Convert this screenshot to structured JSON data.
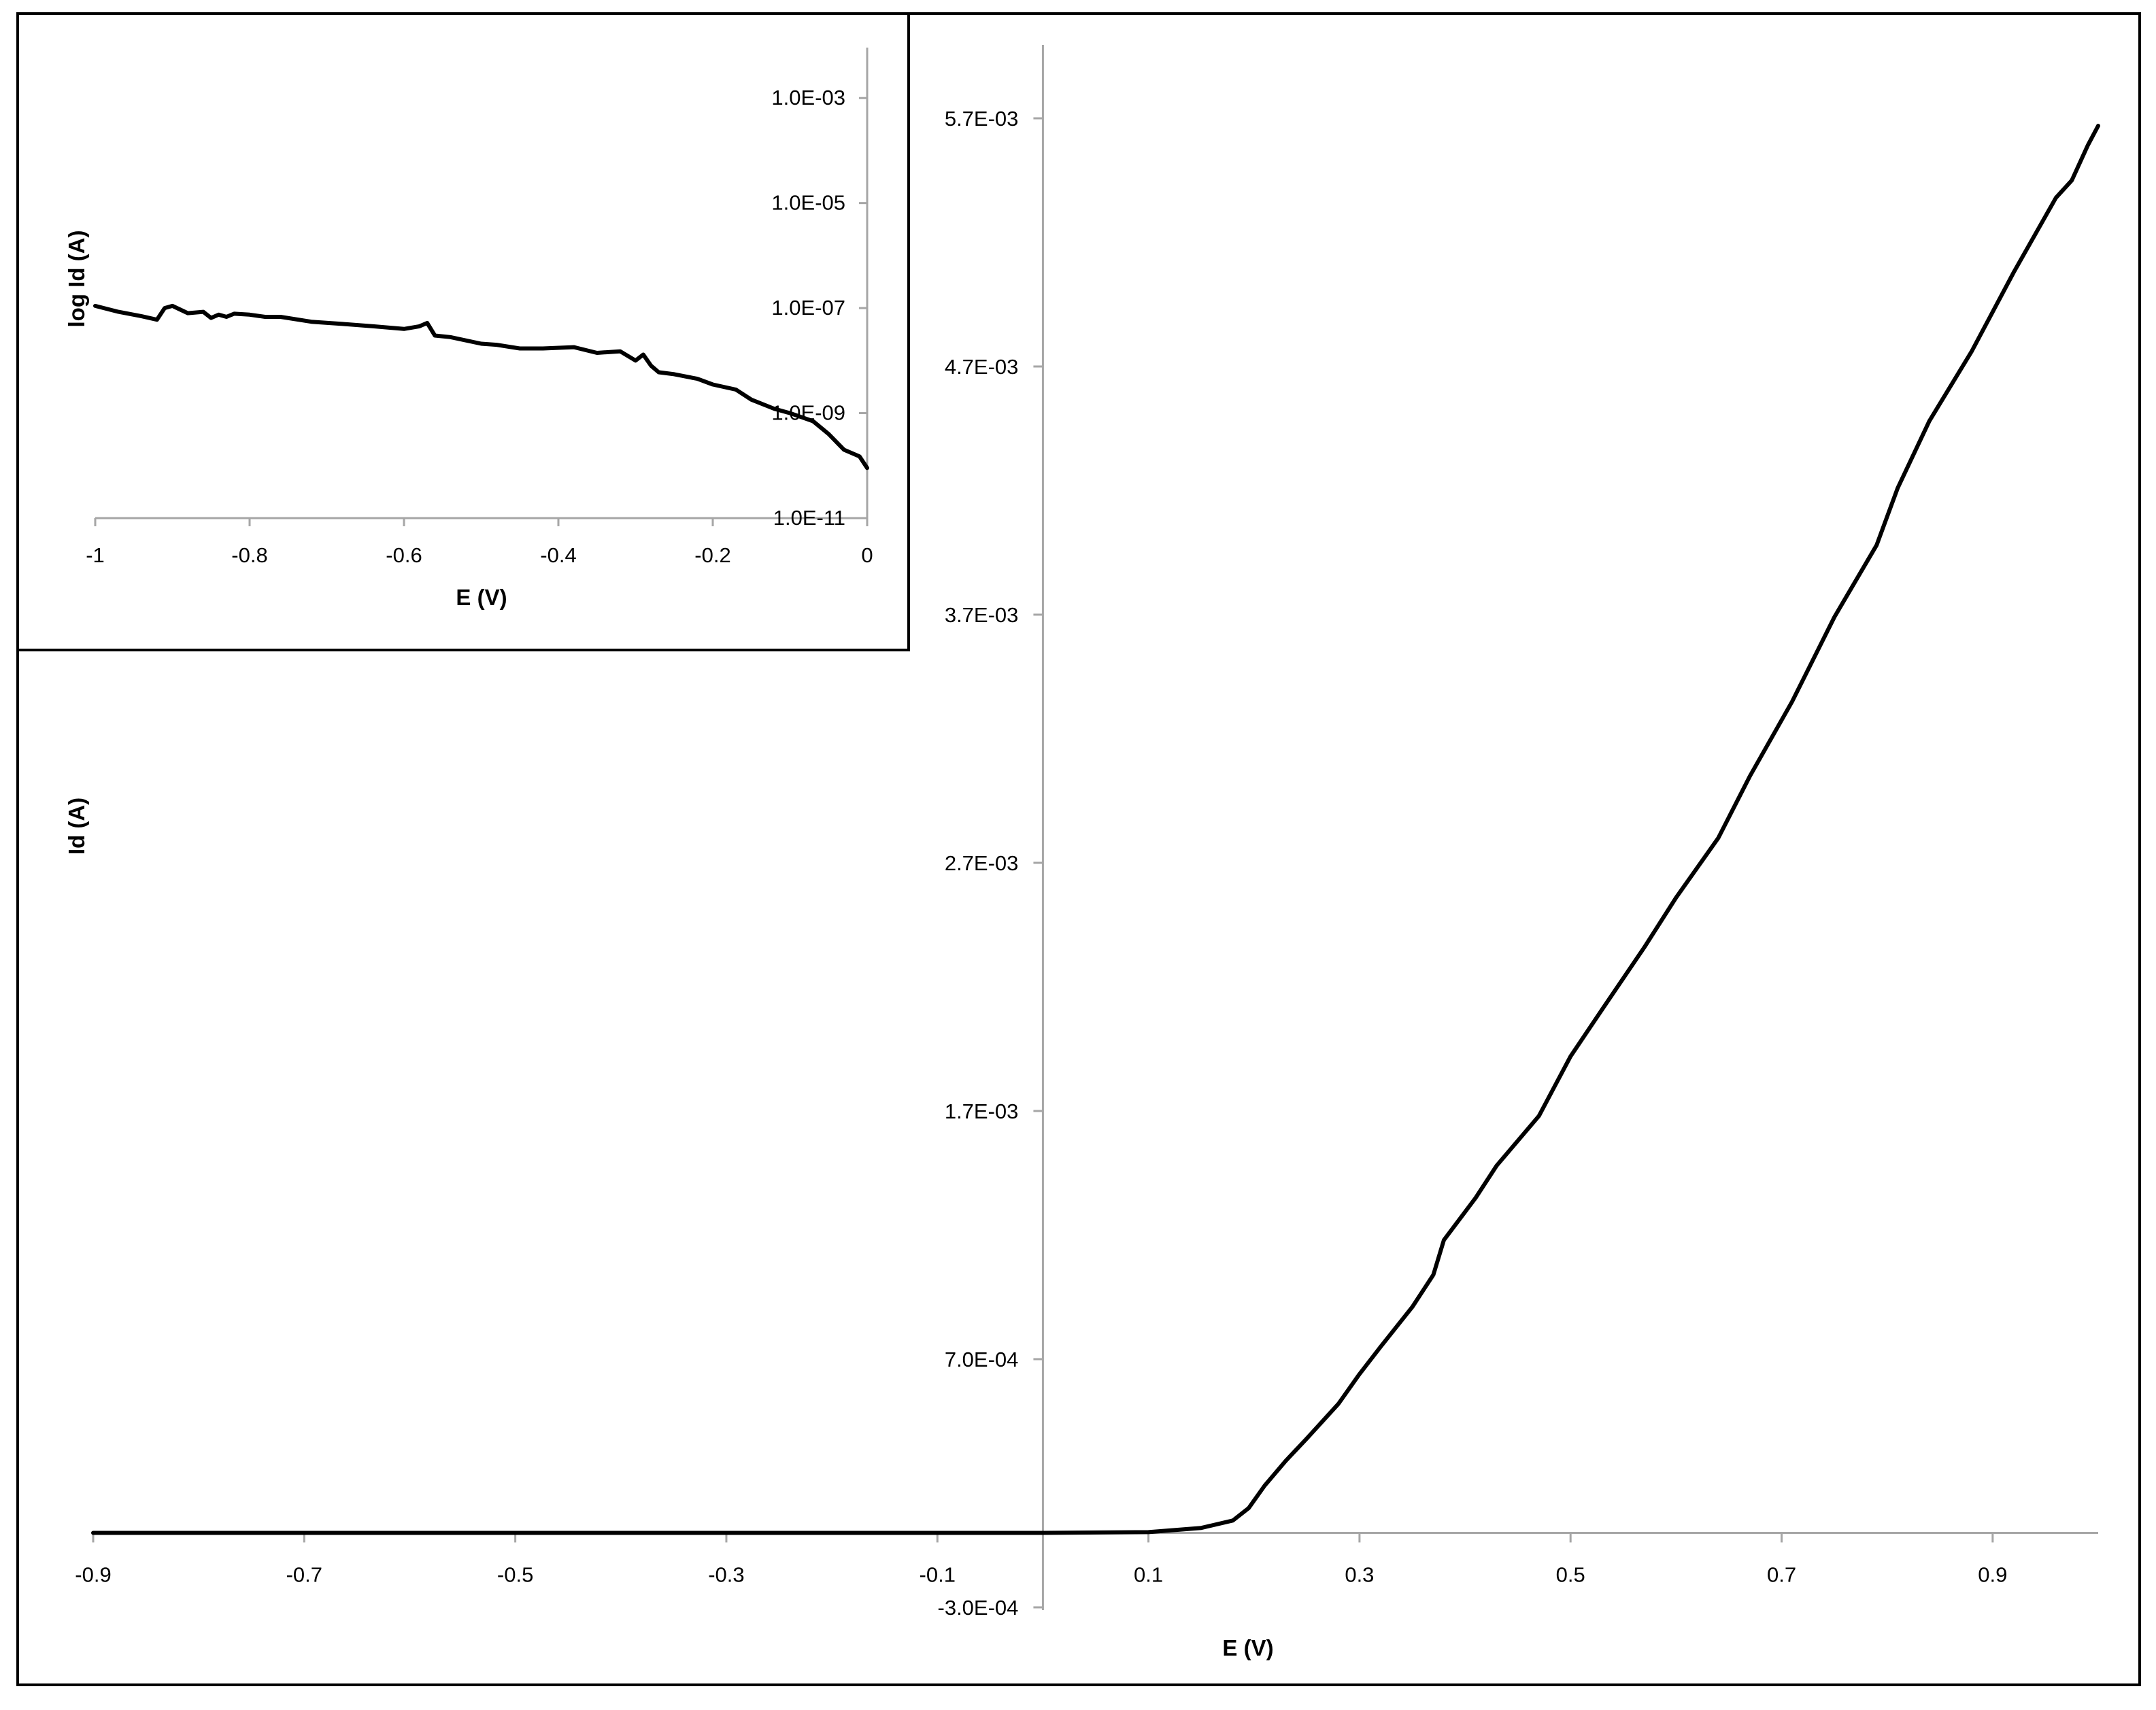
{
  "colors": {
    "background": "#ffffff",
    "axis": "#a6a6a6",
    "line": "#000000",
    "frame": "#000000"
  },
  "chart_data": [
    {
      "type": "line",
      "title": "",
      "xlabel": "E (V)",
      "ylabel": "Id (A)",
      "xlim": [
        -0.9,
        1.0
      ],
      "ylim": [
        -0.0003,
        0.0057
      ],
      "x_tick_labels": [
        "-0.9",
        "-0.7",
        "-0.5",
        "-0.3",
        "-0.1",
        "0.1",
        "0.3",
        "0.5",
        "0.7",
        "0.9"
      ],
      "y_tick_labels": [
        "-3.0E-04",
        "7.0E-04",
        "1.7E-03",
        "2.7E-03",
        "3.7E-03",
        "4.7E-03",
        "5.7E-03"
      ],
      "grid": false,
      "legend": "none",
      "series": [
        {
          "x": [
            -0.9,
            0.0,
            0.1,
            0.15,
            0.18,
            0.195,
            0.21,
            0.23,
            0.25,
            0.28,
            0.3,
            0.32,
            0.35,
            0.37,
            0.38,
            0.41,
            0.43,
            0.47,
            0.5,
            0.53,
            0.57,
            0.6,
            0.64,
            0.67,
            0.71,
            0.75,
            0.79,
            0.81,
            0.84,
            0.88,
            0.92,
            0.96,
            0.975,
            0.99,
            1.0
          ],
          "y": [
            0.0,
            0.0,
            3e-06,
            2e-05,
            5e-05,
            0.0001,
            0.00019,
            0.00029,
            0.00038,
            0.00052,
            0.00064,
            0.00075,
            0.00091,
            0.00104,
            0.00118,
            0.00135,
            0.00148,
            0.00168,
            0.00192,
            0.00211,
            0.00236,
            0.00256,
            0.0028,
            0.00305,
            0.00335,
            0.00369,
            0.00398,
            0.00421,
            0.00448,
            0.00476,
            0.00508,
            0.00538,
            0.00545,
            0.00559,
            0.00567
          ]
        }
      ]
    },
    {
      "type": "line",
      "title": "",
      "xlabel": "E (V)",
      "ylabel": "log Id (A)",
      "xlim": [
        -1,
        0
      ],
      "ylim": [
        1e-11,
        0.01
      ],
      "y_scale": "log",
      "x_tick_labels": [
        "-1",
        "-0.8",
        "-0.6",
        "-0.4",
        "-0.2",
        "0"
      ],
      "y_tick_labels": [
        "1.0E-11",
        "1.0E-09",
        "1.0E-07",
        "1.0E-05",
        "1.0E-03"
      ],
      "grid": false,
      "legend": "none",
      "series": [
        {
          "x": [
            -1.0,
            -0.97,
            -0.94,
            -0.92,
            -0.91,
            -0.9,
            -0.88,
            -0.86,
            -0.85,
            -0.84,
            -0.83,
            -0.82,
            -0.8,
            -0.78,
            -0.76,
            -0.72,
            -0.68,
            -0.64,
            -0.6,
            -0.58,
            -0.57,
            -0.56,
            -0.54,
            -0.5,
            -0.48,
            -0.45,
            -0.42,
            -0.38,
            -0.35,
            -0.32,
            -0.3,
            -0.29,
            -0.28,
            -0.27,
            -0.25,
            -0.22,
            -0.2,
            -0.17,
            -0.15,
            -0.12,
            -0.1,
            -0.07,
            -0.05,
            -0.03,
            -0.01,
            0.0
          ],
          "y": [
            1.1e-07,
            8.5e-08,
            7e-08,
            6e-08,
            1e-07,
            1.1e-07,
            8e-08,
            8.5e-08,
            6.5e-08,
            7.5e-08,
            6.8e-08,
            7.8e-08,
            7.5e-08,
            6.8e-08,
            6.8e-08,
            5.5e-08,
            5e-08,
            4.5e-08,
            4e-08,
            4.5e-08,
            5.2e-08,
            3e-08,
            2.8e-08,
            2.1e-08,
            2e-08,
            1.7e-08,
            1.7e-08,
            1.8e-08,
            1.4e-08,
            1.5e-08,
            1e-08,
            1.3e-08,
            8e-09,
            6e-09,
            5.5e-09,
            4.5e-09,
            3.5e-09,
            2.8e-09,
            1.8e-09,
            1.2e-09,
            1e-09,
            7e-10,
            4e-10,
            2e-10,
            1.5e-10,
            9e-11
          ]
        }
      ]
    }
  ]
}
